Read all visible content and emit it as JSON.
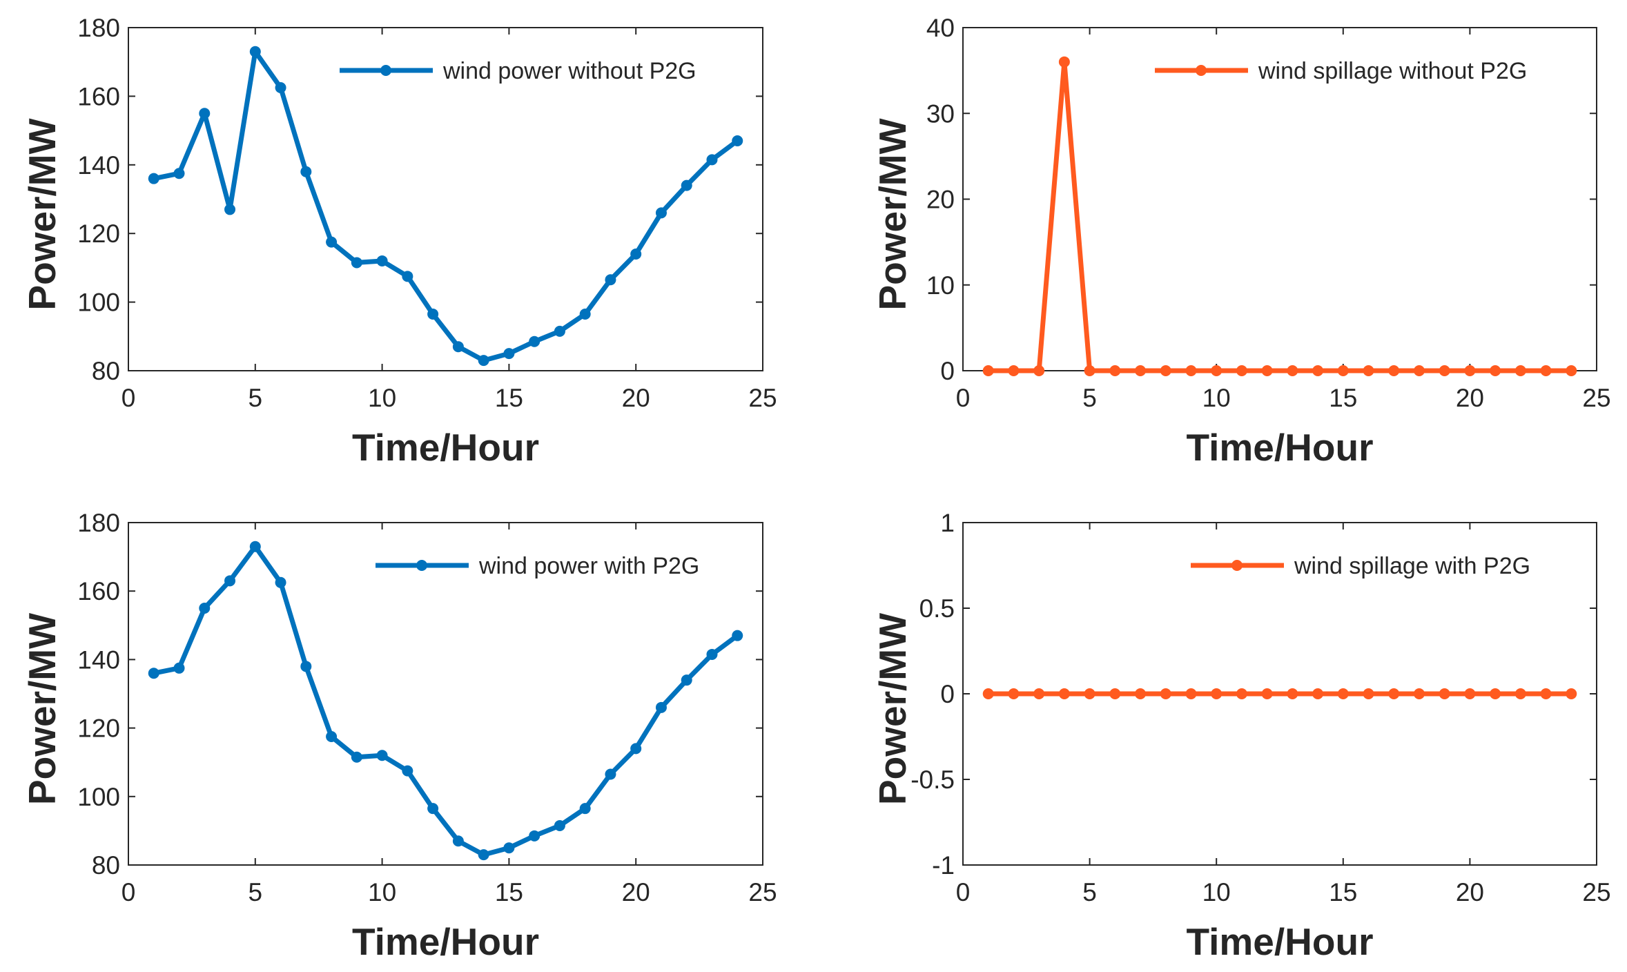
{
  "chart_data": [
    {
      "type": "line",
      "title": "",
      "xlabel": "Time/Hour",
      "ylabel": "Power/MW",
      "xlim": [
        0,
        25
      ],
      "ylim": [
        80,
        180
      ],
      "xticks": [
        0,
        5,
        10,
        15,
        20,
        25
      ],
      "yticks": [
        80,
        100,
        120,
        140,
        160,
        180
      ],
      "legend_position": "top-right",
      "series": [
        {
          "name": "wind power without P2G",
          "color": "#0072BD",
          "x": [
            1,
            2,
            3,
            4,
            5,
            6,
            7,
            8,
            9,
            10,
            11,
            12,
            13,
            14,
            15,
            16,
            17,
            18,
            19,
            20,
            21,
            22,
            23,
            24
          ],
          "values": [
            136,
            137.5,
            155,
            127,
            173,
            162.5,
            138,
            117.5,
            111.5,
            112,
            107.5,
            96.5,
            87,
            83,
            85,
            88.5,
            91.5,
            96.5,
            106.5,
            114,
            126,
            134,
            141.5,
            147
          ]
        }
      ]
    },
    {
      "type": "line",
      "title": "",
      "xlabel": "Time/Hour",
      "ylabel": "Power/MW",
      "xlim": [
        0,
        25
      ],
      "ylim": [
        0,
        40
      ],
      "xticks": [
        0,
        5,
        10,
        15,
        20,
        25
      ],
      "yticks": [
        0,
        10,
        20,
        30,
        40
      ],
      "legend_position": "top-right",
      "series": [
        {
          "name": "wind spillage without P2G",
          "color": "#FF5A1F",
          "x": [
            1,
            2,
            3,
            4,
            5,
            6,
            7,
            8,
            9,
            10,
            11,
            12,
            13,
            14,
            15,
            16,
            17,
            18,
            19,
            20,
            21,
            22,
            23,
            24
          ],
          "values": [
            0,
            0,
            0,
            36,
            0,
            0,
            0,
            0,
            0,
            0,
            0,
            0,
            0,
            0,
            0,
            0,
            0,
            0,
            0,
            0,
            0,
            0,
            0,
            0
          ]
        }
      ]
    },
    {
      "type": "line",
      "title": "",
      "xlabel": "Time/Hour",
      "ylabel": "Power/MW",
      "xlim": [
        0,
        25
      ],
      "ylim": [
        80,
        180
      ],
      "xticks": [
        0,
        5,
        10,
        15,
        20,
        25
      ],
      "yticks": [
        80,
        100,
        120,
        140,
        160,
        180
      ],
      "legend_position": "top-right",
      "series": [
        {
          "name": "wind power with P2G",
          "color": "#0072BD",
          "x": [
            1,
            2,
            3,
            4,
            5,
            6,
            7,
            8,
            9,
            10,
            11,
            12,
            13,
            14,
            15,
            16,
            17,
            18,
            19,
            20,
            21,
            22,
            23,
            24
          ],
          "values": [
            136,
            137.5,
            155,
            163,
            173,
            162.5,
            138,
            117.5,
            111.5,
            112,
            107.5,
            96.5,
            87,
            83,
            85,
            88.5,
            91.5,
            96.5,
            106.5,
            114,
            126,
            134,
            141.5,
            147
          ]
        }
      ]
    },
    {
      "type": "line",
      "title": "",
      "xlabel": "Time/Hour",
      "ylabel": "Power/MW",
      "xlim": [
        0,
        25
      ],
      "ylim": [
        -1,
        1
      ],
      "xticks": [
        0,
        5,
        10,
        15,
        20,
        25
      ],
      "yticks": [
        -1,
        -0.5,
        0,
        0.5,
        1
      ],
      "legend_position": "top-right",
      "series": [
        {
          "name": "wind spillage with P2G",
          "color": "#FF5A1F",
          "x": [
            1,
            2,
            3,
            4,
            5,
            6,
            7,
            8,
            9,
            10,
            11,
            12,
            13,
            14,
            15,
            16,
            17,
            18,
            19,
            20,
            21,
            22,
            23,
            24
          ],
          "values": [
            0,
            0,
            0,
            0,
            0,
            0,
            0,
            0,
            0,
            0,
            0,
            0,
            0,
            0,
            0,
            0,
            0,
            0,
            0,
            0,
            0,
            0,
            0,
            0
          ]
        }
      ]
    }
  ]
}
